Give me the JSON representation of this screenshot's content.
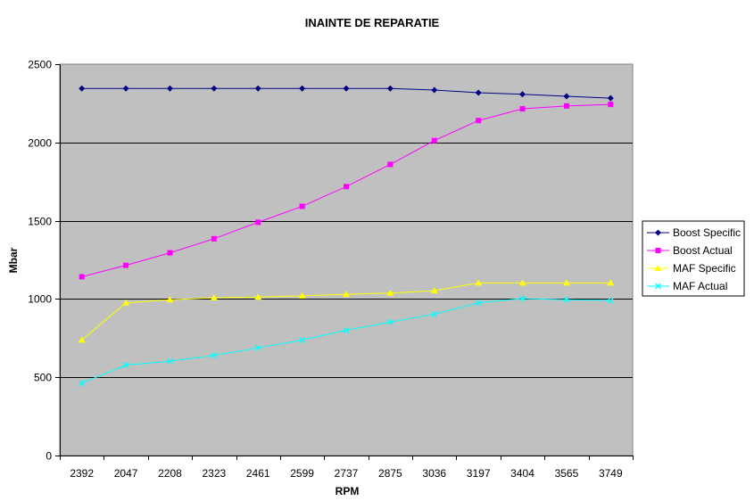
{
  "chart_data": {
    "type": "line",
    "title": "INAINTE DE REPARATIE",
    "xlabel": "RPM",
    "ylabel": "Mbar",
    "categories": [
      "2392",
      "2047",
      "2208",
      "2323",
      "2461",
      "2599",
      "2737",
      "2875",
      "3036",
      "3197",
      "3404",
      "3565",
      "3749"
    ],
    "ylim": [
      0,
      2500
    ],
    "yticks": [
      0,
      500,
      1000,
      1500,
      2000,
      2500
    ],
    "grid": "horizontal",
    "legend_position": "right",
    "plot_background": "#c0c0c0",
    "series": [
      {
        "name": "Boost Specific",
        "marker": "diamond",
        "color": "#000080",
        "values": [
          2345,
          2345,
          2345,
          2345,
          2345,
          2345,
          2345,
          2345,
          2335,
          2318,
          2308,
          2295,
          2283
        ]
      },
      {
        "name": "Boost Actual",
        "marker": "square",
        "color": "#ff00ff",
        "values": [
          1142,
          1215,
          1295,
          1385,
          1490,
          1592,
          1718,
          1860,
          2012,
          2140,
          2215,
          2233,
          2243
        ]
      },
      {
        "name": "MAF Specific",
        "marker": "triangle",
        "color": "#ffff00",
        "values": [
          738,
          975,
          995,
          1008,
          1012,
          1020,
          1030,
          1038,
          1053,
          1103,
          1103,
          1103,
          1103
        ]
      },
      {
        "name": "MAF Actual",
        "marker": "x",
        "color": "#00ffff",
        "values": [
          462,
          578,
          602,
          640,
          688,
          738,
          800,
          853,
          903,
          975,
          1003,
          995,
          990
        ]
      }
    ]
  }
}
